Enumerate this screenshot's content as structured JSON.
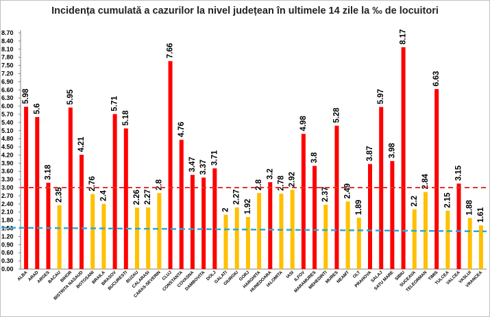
{
  "chart_data": {
    "type": "bar",
    "title": "Incidența cumulată a cazurilor la nivel județean în ultimele 14 zile la ‰ de locuitori",
    "xlabel": "",
    "ylabel": "",
    "ylim": [
      0,
      8.7
    ],
    "y_ticks": [
      "0.00",
      "0.30",
      "0.60",
      "0.90",
      "1.20",
      "1.50",
      "1.80",
      "2.10",
      "2.40",
      "2.70",
      "3.00",
      "3.30",
      "3.60",
      "3.90",
      "4.20",
      "4.50",
      "4.80",
      "5.10",
      "5.40",
      "5.70",
      "6.00",
      "6.30",
      "6.60",
      "6.90",
      "7.20",
      "7.50",
      "7.80",
      "8.10",
      "8.40",
      "8.70"
    ],
    "grid": false,
    "categories": [
      "ALBA",
      "ARAD",
      "ARGES",
      "BACAU",
      "BIHOR",
      "BISTRITA NASAUD",
      "BOTOSANI",
      "BRAILA",
      "BRASOV",
      "BUCURESTI",
      "BUZAU",
      "CALARASI",
      "CARAS-SEVERIN",
      "CLUJ",
      "CONSTANTA",
      "COVASNA",
      "DAMBOVITA",
      "DOLJ",
      "GALATI",
      "GIURGIU",
      "GORJ",
      "HARGHITA",
      "HUNEDOARA",
      "IALOMITA",
      "IASI",
      "ILFOV",
      "MARAMURES",
      "MEHEDINTI",
      "MURES",
      "NEAMT",
      "OLT",
      "PRAHOVA",
      "SALAJ",
      "SATU MARE",
      "SIBIU",
      "SUCEAVA",
      "TELEORMAN",
      "TIMIS",
      "TULCEA",
      "VALCEA",
      "VASLUI",
      "VRANCEA"
    ],
    "values": [
      5.98,
      5.6,
      3.18,
      2.35,
      5.95,
      4.21,
      2.76,
      2.4,
      5.71,
      5.18,
      2.26,
      2.27,
      2.8,
      7.66,
      4.76,
      3.47,
      3.37,
      3.71,
      2,
      2.27,
      1.92,
      2.8,
      3.2,
      2.78,
      2.92,
      4.98,
      3.8,
      2.37,
      5.28,
      2.49,
      1.89,
      3.87,
      5.97,
      3.98,
      8.17,
      2.2,
      2.84,
      6.63,
      2.15,
      3.15,
      1.88,
      1.61
    ],
    "value_labels": [
      "5.98",
      "5.6",
      "3.18",
      "2.35",
      "5.95",
      "4.21",
      "2.76",
      "2.4",
      "5.71",
      "5.18",
      "2.26",
      "2.27",
      "2.8",
      "7.66",
      "4.76",
      "3.47",
      "3.37",
      "3.71",
      "2",
      "2.27",
      "1.92",
      "2.8",
      "3.2",
      "2.78",
      "2.92",
      "4.98",
      "3.8",
      "2.37",
      "5.28",
      "2.49",
      "1.89",
      "3.87",
      "5.97",
      "3.98",
      "8.17",
      "2.2",
      "2.84",
      "6.63",
      "2.15",
      "3.15",
      "1.88",
      "1.61"
    ],
    "threshold_red": 3.0,
    "threshold_blue": [
      1.5,
      1.39
    ],
    "colors": {
      "high": "#ff0000",
      "low": "#ffc000",
      "red_line": "#e03030",
      "blue_line": "#2aa8d8",
      "axis": "#7f7f7f",
      "text": "#000000"
    }
  }
}
